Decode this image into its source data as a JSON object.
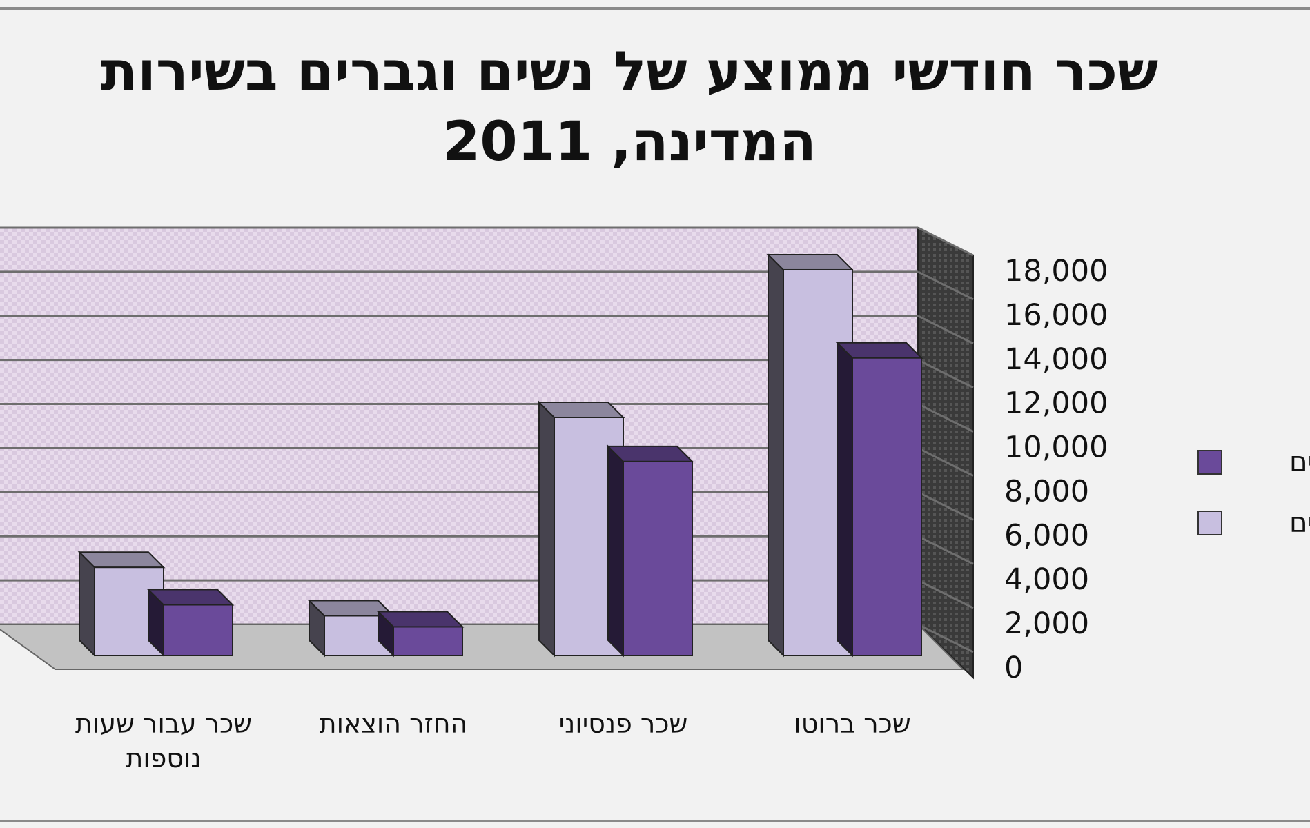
{
  "chart_data": {
    "type": "bar",
    "title_lines": [
      "שכר חודשי ממוצע של נשים וגברים בשירות",
      "המדינה, 2011"
    ],
    "categories": [
      [
        "שכר ברוטו"
      ],
      [
        "שכר פנסיוני"
      ],
      [
        "החזר הוצאות"
      ],
      [
        "שכר עבור שעות",
        "נוספות"
      ]
    ],
    "series": [
      {
        "name": "גברים",
        "values": [
          17500,
          10800,
          1800,
          4000
        ],
        "color": "#c8bfe0"
      },
      {
        "name": "נשים",
        "values": [
          13500,
          8800,
          1300,
          2300
        ],
        "color": "#6a4a9a"
      }
    ],
    "y_ticks": [
      "0",
      "2,000",
      "4,000",
      "6,000",
      "8,000",
      "10,000",
      "12,000",
      "14,000",
      "16,000",
      "18,000"
    ],
    "ylim": [
      0,
      18000
    ],
    "grid": true,
    "legend_position": "right",
    "legend": [
      {
        "label": "נשים",
        "color": "#6a4a9a"
      },
      {
        "label": "גברים",
        "color": "#c8bfe0"
      }
    ],
    "colors": {
      "background": "#f2f2f2",
      "wall": "#e6d8ea",
      "floor": "#c2c2c2",
      "side_wall": "#3a3a3a"
    }
  }
}
